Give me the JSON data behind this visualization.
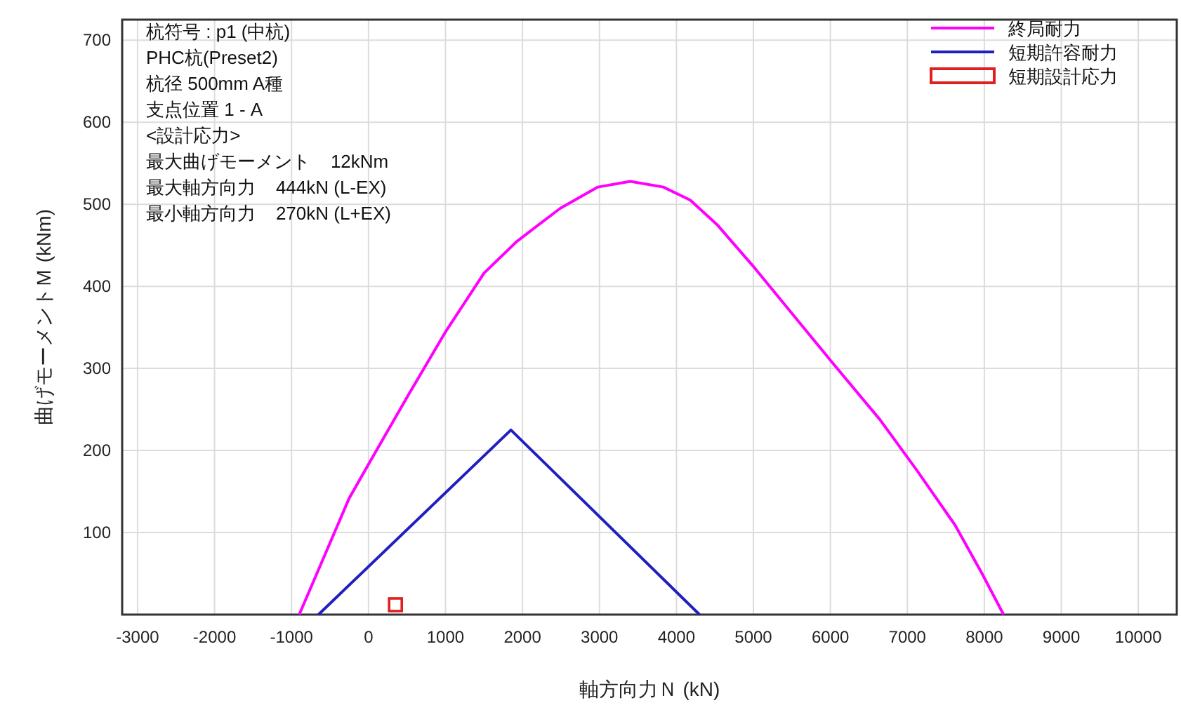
{
  "chart_data": {
    "type": "line",
    "xlabel": "軸方向力Ｎ (kN)",
    "ylabel": "曲げモーメントＭ (kNm)",
    "xlim": [
      -3200,
      10500
    ],
    "ylim": [
      0,
      725
    ],
    "xticks": [
      -3000,
      -2000,
      -1000,
      0,
      1000,
      2000,
      3000,
      4000,
      5000,
      6000,
      7000,
      8000,
      9000,
      10000
    ],
    "yticks": [
      100,
      200,
      300,
      400,
      500,
      600,
      700
    ],
    "grid": true,
    "legend": "top right",
    "annotations": [
      "杭符号 : p1 (中杭)",
      "PHC杭(Preset2)",
      "杭径 500mm A種",
      "支点位置 1 - A",
      "<設計応力>",
      "最大曲げモーメント    12kNm",
      "最大軸方向力    444kN (L-EX)",
      "最小軸方向力    270kN (L+EX)"
    ],
    "series": [
      {
        "name": "終局耐力",
        "color": "#ff00ff",
        "x": [
          -900,
          -250,
          30,
          520,
          1010,
          1500,
          1930,
          2490,
          2980,
          3400,
          3830,
          4180,
          4530,
          5020,
          5510,
          6000,
          6640,
          7130,
          7620,
          7970,
          8250
        ],
        "values": [
          0,
          142,
          188,
          268,
          346,
          416,
          455,
          495,
          521,
          528,
          521,
          505,
          475,
          422,
          366,
          310,
          238,
          175,
          109,
          50,
          0
        ]
      },
      {
        "name": "短期許容耐力",
        "color": "#2020c0",
        "x": [
          -650,
          1850,
          4300
        ],
        "values": [
          0,
          225,
          0
        ]
      },
      {
        "name": "短期設計応力",
        "color": "#e02020",
        "type": "scatter",
        "marker": "square",
        "x": [
          350
        ],
        "values": [
          12
        ]
      }
    ]
  }
}
